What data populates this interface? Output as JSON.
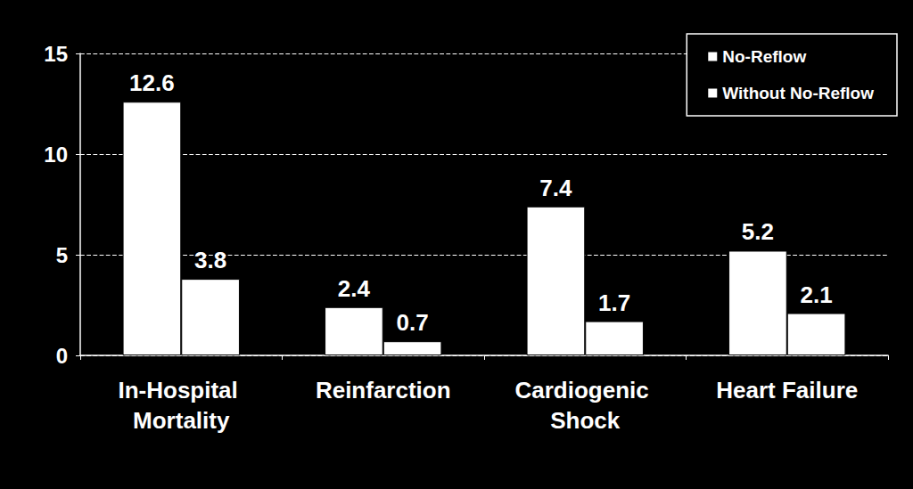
{
  "chart_data": {
    "type": "bar",
    "categories": [
      "In-Hospital Mortality",
      "Reinfarction",
      "Cardiogenic Shock",
      "Heart Failure"
    ],
    "series": [
      {
        "name": "No-Reflow",
        "color": "#ffffff",
        "values": [
          12.6,
          2.4,
          7.4,
          5.2
        ]
      },
      {
        "name": "Without No-Reflow",
        "color": "#ffffff",
        "values": [
          3.8,
          0.7,
          1.7,
          2.1
        ]
      }
    ],
    "ylim": [
      0,
      15
    ],
    "yticks": [
      0,
      5,
      10,
      15
    ],
    "grid": true,
    "legend": "top-right",
    "data_labels": true
  }
}
